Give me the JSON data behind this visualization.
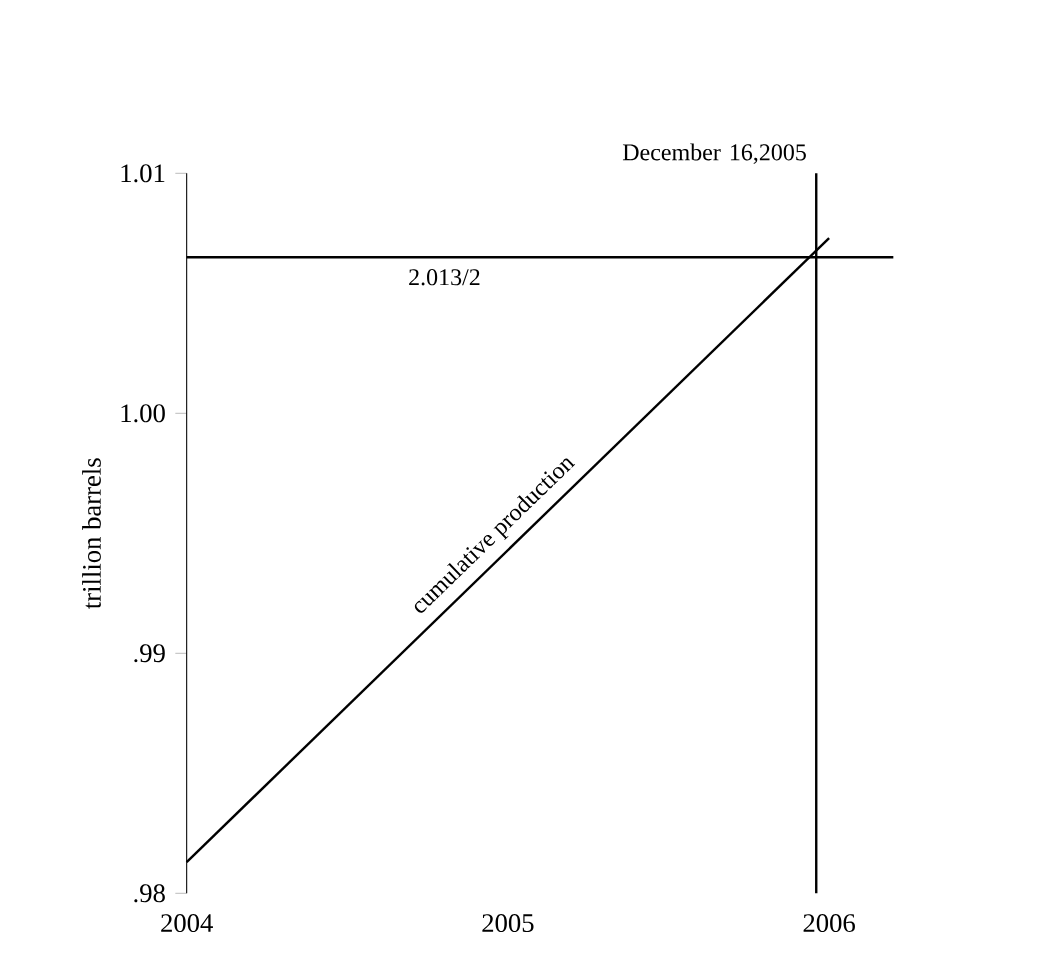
{
  "chart_data": {
    "type": "line",
    "ylabel": "trillion barrels",
    "x": [
      2004,
      2006
    ],
    "series": [
      {
        "color": "#000000",
        "values": [
          0.9813,
          1.0073
        ]
      }
    ],
    "xlim": [
      2004,
      2006.2
    ],
    "ylim": [
      0.98,
      1.01
    ],
    "xticks": [
      2004,
      2005,
      2006
    ],
    "yticks": [
      {
        "value": 0.98,
        "label": ".98"
      },
      {
        "value": 0.99,
        "label": ".99"
      },
      {
        "value": 1.0,
        "label": "1.00"
      },
      {
        "value": 1.01,
        "label": "1.01"
      }
    ],
    "ref_lines": [
      {
        "axis": "y",
        "value": 1.0065,
        "color": "#000000"
      },
      {
        "axis": "x",
        "value": 2005.96,
        "label": "December 16,2005",
        "color": "#000000"
      }
    ],
    "annotations": [
      {
        "text": "cumulative production",
        "x": 2005.0,
        "y": 0.9943
      },
      "2.013/2"
    ],
    "grid": false,
    "marker": "none",
    "line_style": "solid"
  }
}
